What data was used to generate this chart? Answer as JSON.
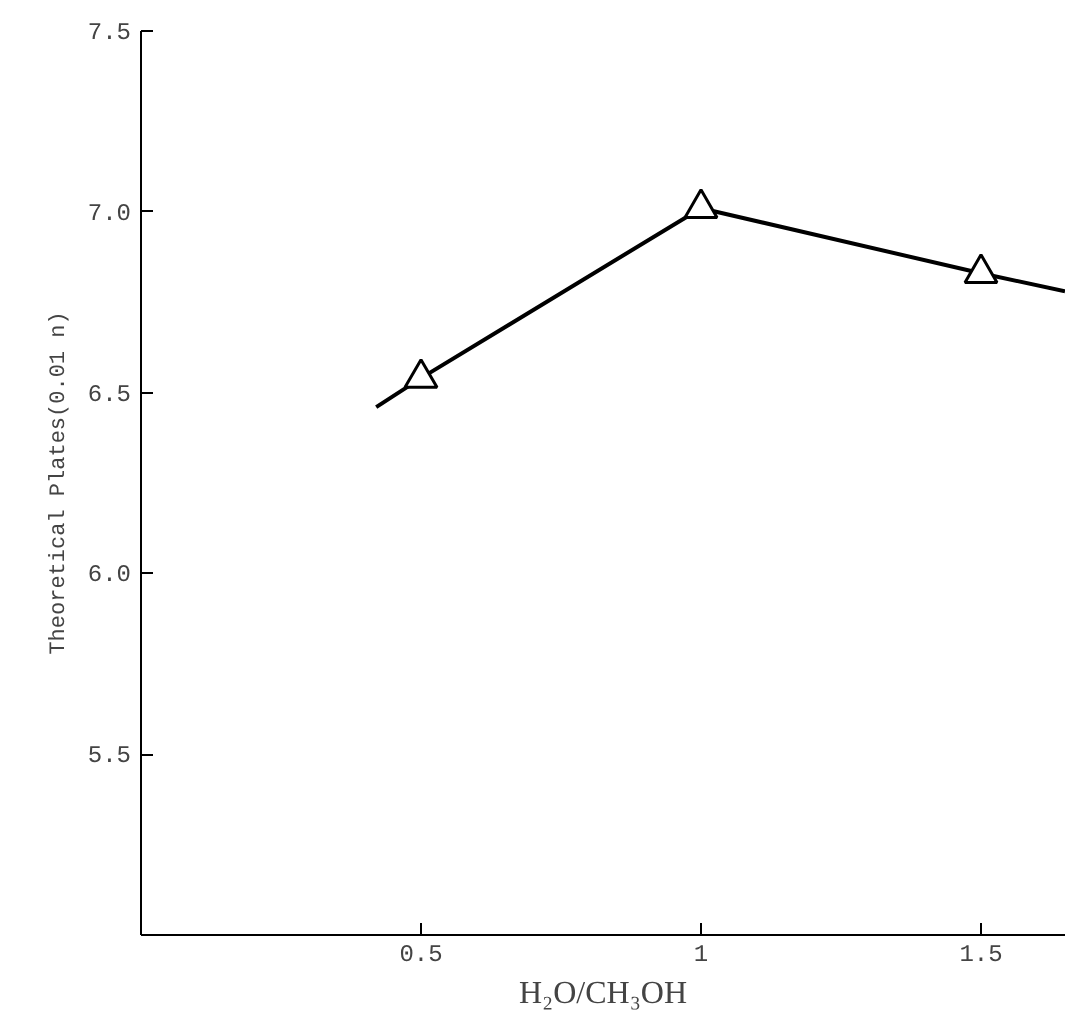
{
  "chart_data": {
    "type": "line",
    "xlabel": "H₂O/CH₃OH",
    "ylabel": "Theoretical Plates(0.01 n)",
    "xlim": [
      0,
      1.65
    ],
    "ylim": [
      5.0,
      7.5
    ],
    "xticks": [
      0.5,
      1,
      1.5
    ],
    "yticks": [
      5.5,
      {
        "value": 6,
        "label": "6.0"
      },
      6.5,
      {
        "value": 7,
        "label": "7.0"
      },
      7.5
    ],
    "grid": false,
    "series": [
      {
        "color": "#000000",
        "marker": "none",
        "x": [
          0.42,
          0.5,
          1,
          1.5,
          1.65
        ],
        "values": [
          6.46,
          6.54,
          7.01,
          6.83,
          6.78
        ]
      },
      {
        "type": "scatter",
        "color": "#000000",
        "marker": "triangle",
        "x": [
          0.5,
          1,
          1.5
        ],
        "values": [
          6.54,
          7.01,
          6.83
        ]
      }
    ]
  }
}
